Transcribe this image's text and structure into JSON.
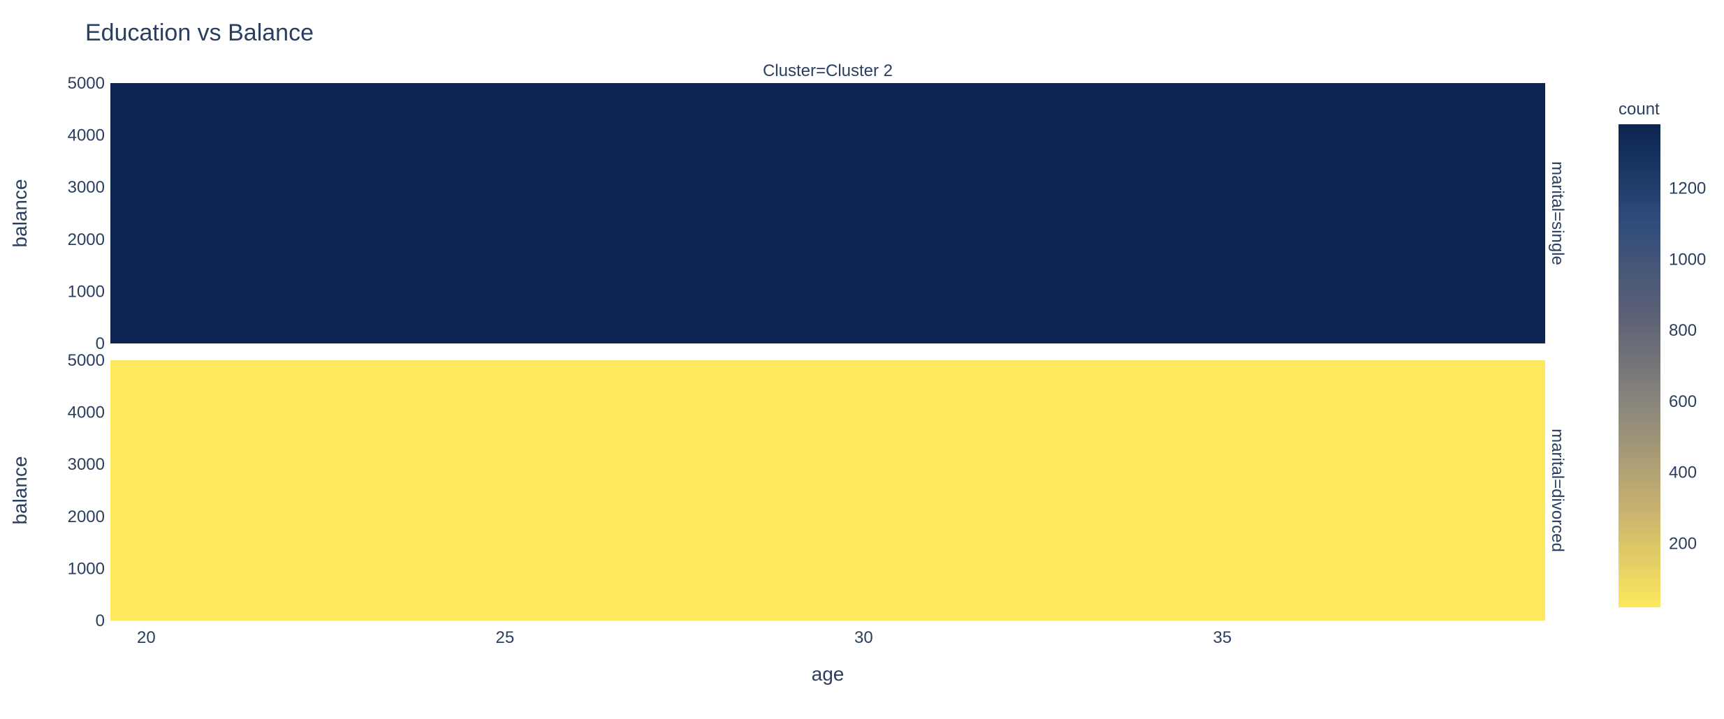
{
  "chart_data": {
    "type": "heatmap",
    "title": "Education vs Balance",
    "facet_col_label": "Cluster=Cluster 2",
    "xlabel": "age",
    "ylabel": "balance",
    "x_ticks": [
      20,
      25,
      30,
      35
    ],
    "xlim": [
      19.5,
      39.5
    ],
    "y_ticks": [
      0,
      1000,
      2000,
      3000,
      4000,
      5000
    ],
    "ylim": [
      0,
      5000
    ],
    "panels": [
      {
        "facet_row_label": "marital=single",
        "count": 1380
      },
      {
        "facet_row_label": "marital=divorced",
        "count": 20
      }
    ],
    "colorbar": {
      "title": "count",
      "ticks": [
        200,
        400,
        600,
        800,
        1000,
        1200
      ],
      "range": [
        20,
        1380
      ],
      "colorscale": [
        "#fde85e",
        "#c9b26e",
        "#8f8a7b",
        "#5d6275",
        "#2f4b7c",
        "#0b2450"
      ]
    }
  }
}
